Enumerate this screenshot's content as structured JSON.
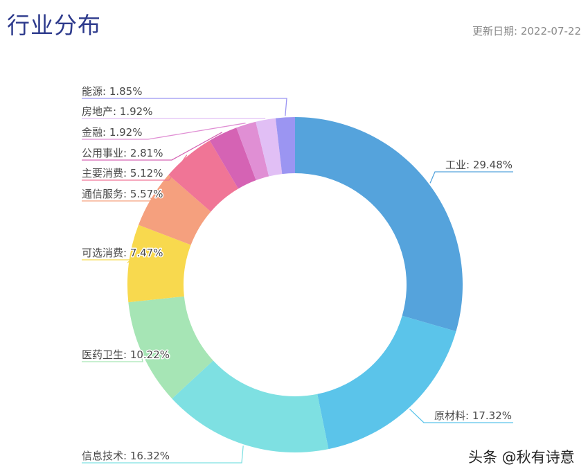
{
  "header": {
    "title": "行业分布",
    "date_label": "更新日期:  2022-07-22"
  },
  "watermark": "头条 @秋有诗意",
  "chart_data": {
    "type": "pie",
    "subtype": "donut",
    "title": "行业分布",
    "start_angle": "12 o'clock",
    "direction": "clockwise",
    "categories": [
      "工业",
      "原材料",
      "信息技术",
      "医药卫生",
      "可选消费",
      "通信服务",
      "主要消费",
      "公用事业",
      "金融",
      "房地产",
      "能源"
    ],
    "values": [
      29.48,
      17.32,
      16.32,
      10.22,
      7.47,
      5.57,
      5.12,
      2.81,
      1.92,
      1.92,
      1.85
    ],
    "unit": "%",
    "colors": [
      "#55a3dc",
      "#5bc4ea",
      "#7ee0e2",
      "#a6e5b5",
      "#f8d94e",
      "#f5a07e",
      "#f07596",
      "#d563b4",
      "#e08fd4",
      "#e1bff5",
      "#9b95f2"
    ],
    "labels": [
      "工业: 29.48%",
      "原材料: 17.32%",
      "信息技术: 16.32%",
      "医药卫生: 10.22%",
      "可选消费: 7.47%",
      "通信服务: 5.57%",
      "主要消费: 5.12%",
      "公用事业: 2.81%",
      "金融: 1.92%",
      "房地产: 1.92%",
      "能源: 1.85%"
    ],
    "legend": "none (labels with leader lines)"
  }
}
